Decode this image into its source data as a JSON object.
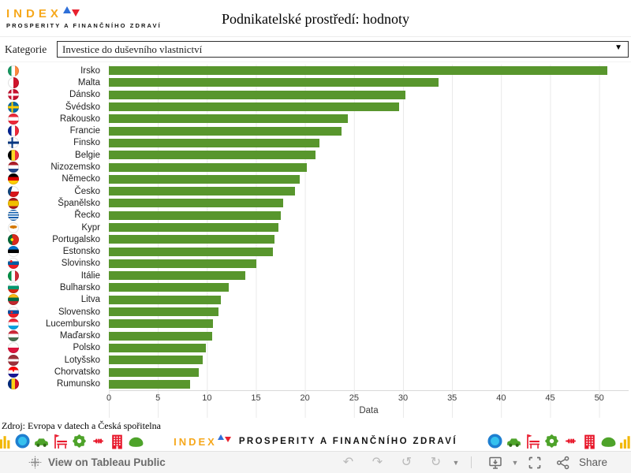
{
  "header": {
    "logo_line1": "INDEX",
    "logo_line2": "PROSPERITY A FINANČNÍHO ZDRAVÍ",
    "logo_color": "#F6A81C",
    "triangle_up_color": "#2E6FD8",
    "triangle_down_color": "#E8212E"
  },
  "filter": {
    "label": "Kategorie",
    "value": "Investice do duševního vlastnictví"
  },
  "chart_data": {
    "type": "bar",
    "orientation": "horizontal",
    "title": "Podnikatelské prostředí: hodnoty",
    "xlabel": "Data",
    "xlim": [
      0,
      53
    ],
    "xticks": [
      0,
      5,
      10,
      15,
      20,
      25,
      30,
      35,
      40,
      45,
      50
    ],
    "grid": "vertical-lines",
    "bar_color": "#58962D",
    "countries": [
      {
        "name": "Irsko",
        "value": 50.8,
        "flag": "linear-gradient(90deg,#169b62 33%,#ffffff 33% 66%,#ff883e 66%)"
      },
      {
        "name": "Malta",
        "value": 33.6,
        "flag": "linear-gradient(90deg,#ffffff 50%,#cf142b 50%)"
      },
      {
        "name": "Dánsko",
        "value": 30.2,
        "flag": "linear-gradient(90deg,transparent 32%,#ffffff 32% 47%,transparent 47%),linear-gradient(transparent 41%,#ffffff 41% 59%,transparent 59%),#c8102e"
      },
      {
        "name": "Švédsko",
        "value": 29.6,
        "flag": "linear-gradient(90deg,transparent 32%,#fecc00 32% 47%,transparent 47%),linear-gradient(transparent 41%,#fecc00 41% 59%,transparent 59%),#006aa7"
      },
      {
        "name": "Rakousko",
        "value": 24.4,
        "flag": "linear-gradient(#ed2939 33%,#ffffff 33% 66%,#ed2939 66%)"
      },
      {
        "name": "Francie",
        "value": 23.7,
        "flag": "linear-gradient(90deg,#002395 33%,#ffffff 33% 66%,#ed2939 66%)"
      },
      {
        "name": "Finsko",
        "value": 21.5,
        "flag": "linear-gradient(90deg,transparent 32%,#003580 32% 47%,transparent 47%),linear-gradient(transparent 41%,#003580 41% 59%,transparent 59%),#ffffff"
      },
      {
        "name": "Belgie",
        "value": 21.1,
        "flag": "linear-gradient(90deg,#000000 33%,#fdda25 33% 66%,#ef3340 66%)"
      },
      {
        "name": "Nizozemsko",
        "value": 20.2,
        "flag": "linear-gradient(#ae1c28 33%,#ffffff 33% 66%,#21468b 66%)"
      },
      {
        "name": "Německo",
        "value": 19.5,
        "flag": "linear-gradient(#000000 33%,#dd0000 33% 66%,#ffce00 66%)"
      },
      {
        "name": "Česko",
        "value": 19.0,
        "flag": "linear-gradient(105deg,#11457e 32%,transparent 33%),linear-gradient(#ffffff 50%,#d7141a 50%)"
      },
      {
        "name": "Španělsko",
        "value": 17.8,
        "flag": "linear-gradient(#aa151b 25%,#f1bf00 25% 75%,#aa151b 75%)"
      },
      {
        "name": "Řecko",
        "value": 17.5,
        "flag": "repeating-linear-gradient(#0d5eaf 0 11%,#ffffff 11% 22%)"
      },
      {
        "name": "Kypr",
        "value": 17.3,
        "flag": "radial-gradient(ellipse 34% 14% at 50% 42%,#d57800 98%,transparent),#ffffff"
      },
      {
        "name": "Portugalsko",
        "value": 16.9,
        "flag": "radial-gradient(circle at 38% 50%,#ffe900 0 16%,transparent 17%),linear-gradient(90deg,#046a38 38%,#da291c 38%)"
      },
      {
        "name": "Estonsko",
        "value": 16.7,
        "flag": "linear-gradient(#0072ce 33%,#000000 33% 66%,#ffffff 66%)"
      },
      {
        "name": "Slovinsko",
        "value": 15.0,
        "flag": "radial-gradient(circle at 30% 33%,#ed1c24 0 11%,transparent 12%),linear-gradient(#ffffff 33%,#005da4 33% 66%,#ed1c24 66%)"
      },
      {
        "name": "Itálie",
        "value": 13.9,
        "flag": "linear-gradient(90deg,#009246 33%,#ffffff 33% 66%,#ce2b37 66%)"
      },
      {
        "name": "Bulharsko",
        "value": 12.2,
        "flag": "linear-gradient(#ffffff 33%,#00966e 33% 66%,#d62612 66%)"
      },
      {
        "name": "Litva",
        "value": 11.4,
        "flag": "linear-gradient(#fdb913 33%,#006a44 33% 66%,#c1272d 66%)"
      },
      {
        "name": "Slovensko",
        "value": 11.2,
        "flag": "radial-gradient(circle at 35% 50%,#ee1c25 0 12%,transparent 13%),linear-gradient(#ffffff 33%,#0b4ea2 33% 66%,#ee1c25 66%)"
      },
      {
        "name": "Lucembursko",
        "value": 10.6,
        "flag": "linear-gradient(#ed2939 33%,#ffffff 33% 66%,#00a2e1 66%)"
      },
      {
        "name": "Maďarsko",
        "value": 10.5,
        "flag": "linear-gradient(#ce2939 33%,#ffffff 33% 66%,#477050 66%)"
      },
      {
        "name": "Polsko",
        "value": 9.9,
        "flag": "linear-gradient(#ffffff 50%,#dc143c 50%)"
      },
      {
        "name": "Lotyšsko",
        "value": 9.6,
        "flag": "linear-gradient(#9e3039 40%,#ffffff 40% 60%,#9e3039 60%)"
      },
      {
        "name": "Chorvatsko",
        "value": 9.2,
        "flag": "radial-gradient(circle at 50% 38%,#ff0000 0 10%,transparent 11%),linear-gradient(#ff0000 33%,#ffffff 33% 66%,#171796 66%)"
      },
      {
        "name": "Rumunsko",
        "value": 8.3,
        "flag": "linear-gradient(90deg,#002b7f 33%,#fcd116 33% 66%,#ce1126 66%)"
      }
    ]
  },
  "source_note": "Zdroj: Evropa v datech a Česká spořitelna",
  "footer": {
    "brand_line1": "INDEX",
    "brand_line2": "PROSPERITY A FINANČNÍHO ZDRAVÍ",
    "icons_left": [
      "bar-chart",
      "globe",
      "car",
      "street-furniture",
      "gear",
      "crossroads",
      "building",
      "cloud"
    ],
    "icons_right": [
      "globe",
      "car",
      "street-furniture",
      "gear",
      "crossroads",
      "building",
      "cloud",
      "bar-chart"
    ]
  },
  "toolbar": {
    "view_label": "View on Tableau Public",
    "share_label": "Share",
    "undo_glyph": "↶",
    "redo_glyph": "↷",
    "replay_glyph": "↺",
    "refresh_glyph": "↻",
    "caret_glyph": "▼"
  }
}
